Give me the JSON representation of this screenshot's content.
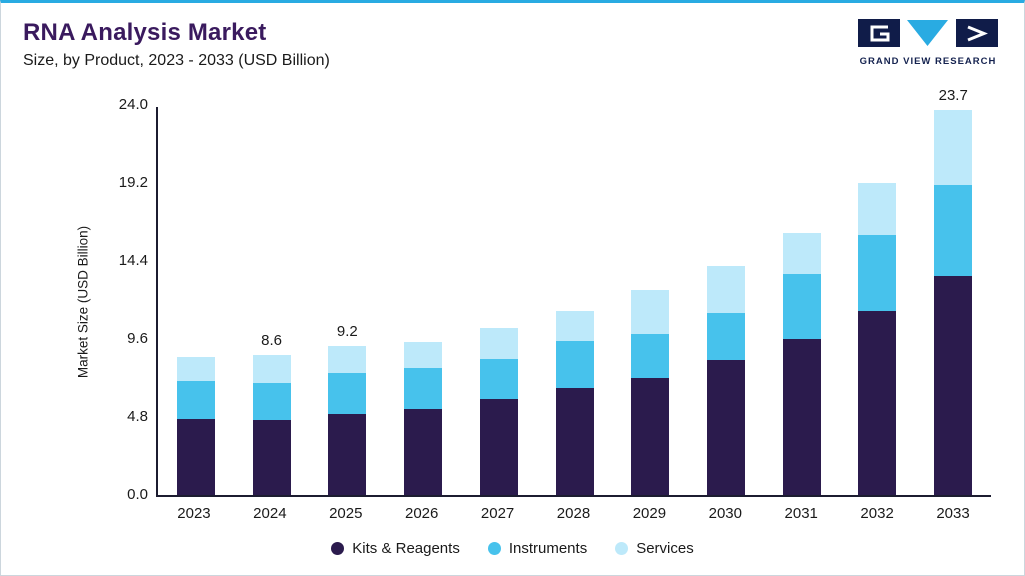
{
  "page": {
    "title": "RNA Analysis Market",
    "subtitle": "Size, by Product, 2023 - 2033 (USD Billion)",
    "accent_color": "#29ABE2"
  },
  "logo": {
    "text": "GRAND VIEW RESEARCH",
    "navy_color": "#101C49",
    "teal_color": "#29ABE2"
  },
  "chart_data": {
    "type": "bar",
    "stacked": true,
    "title": "RNA Analysis Market Size, by Product, 2023 - 2033 (USD Billion)",
    "ylabel": "Market Size (USD Billion)",
    "xlabel": "",
    "ylim": [
      0,
      24
    ],
    "yticks": [
      "0.0",
      "4.8",
      "9.6",
      "14.4",
      "19.2",
      "24.0"
    ],
    "grid": false,
    "legend_position": "bottom",
    "categories": [
      "2023",
      "2024",
      "2025",
      "2026",
      "2027",
      "2028",
      "2029",
      "2030",
      "2031",
      "2032",
      "2033"
    ],
    "series": [
      {
        "name": "Kits & Reagents",
        "color": "#2B1B4D",
        "values": [
          4.7,
          4.6,
          5.0,
          5.3,
          5.9,
          6.6,
          7.2,
          8.3,
          9.6,
          11.3,
          13.5
        ]
      },
      {
        "name": "Instruments",
        "color": "#47C2EC",
        "values": [
          2.3,
          2.3,
          2.5,
          2.5,
          2.5,
          2.9,
          2.7,
          2.9,
          4.0,
          4.7,
          5.6
        ]
      },
      {
        "name": "Services",
        "color": "#BDE9FA",
        "values": [
          1.5,
          1.7,
          1.7,
          1.6,
          1.9,
          1.8,
          2.7,
          2.9,
          2.5,
          3.2,
          4.6
        ]
      }
    ],
    "totals": [
      8.5,
      8.6,
      9.2,
      9.4,
      10.3,
      11.3,
      12.6,
      14.1,
      16.1,
      19.2,
      23.7
    ],
    "totals_shown": {
      "2024": "8.6",
      "2025": "9.2",
      "2033": "23.7"
    }
  }
}
